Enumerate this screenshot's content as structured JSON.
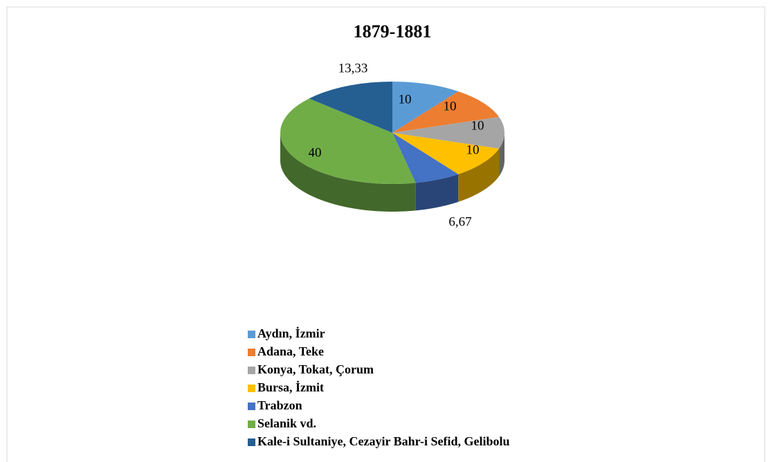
{
  "chart_data": {
    "type": "pie3d",
    "title": "1879-1881",
    "categories": [
      "Aydın, İzmir",
      "Adana, Teke",
      "Konya, Tokat, Çorum",
      "Bursa, İzmit",
      "Trabzon",
      "Selanik vd.",
      "Kale-i Sultaniye, Cezayir Bahr-i Sefid, Gelibolu"
    ],
    "values": [
      10,
      10,
      10,
      10,
      6.67,
      40,
      13.33
    ],
    "value_labels": [
      "10",
      "10",
      "10",
      "10",
      "6,67",
      "40",
      "13,33"
    ],
    "colors": [
      "#5b9bd5",
      "#ed7d31",
      "#a5a5a5",
      "#ffc000",
      "#4472c4",
      "#70ad47",
      "#255e91"
    ],
    "legend": "bottom"
  }
}
